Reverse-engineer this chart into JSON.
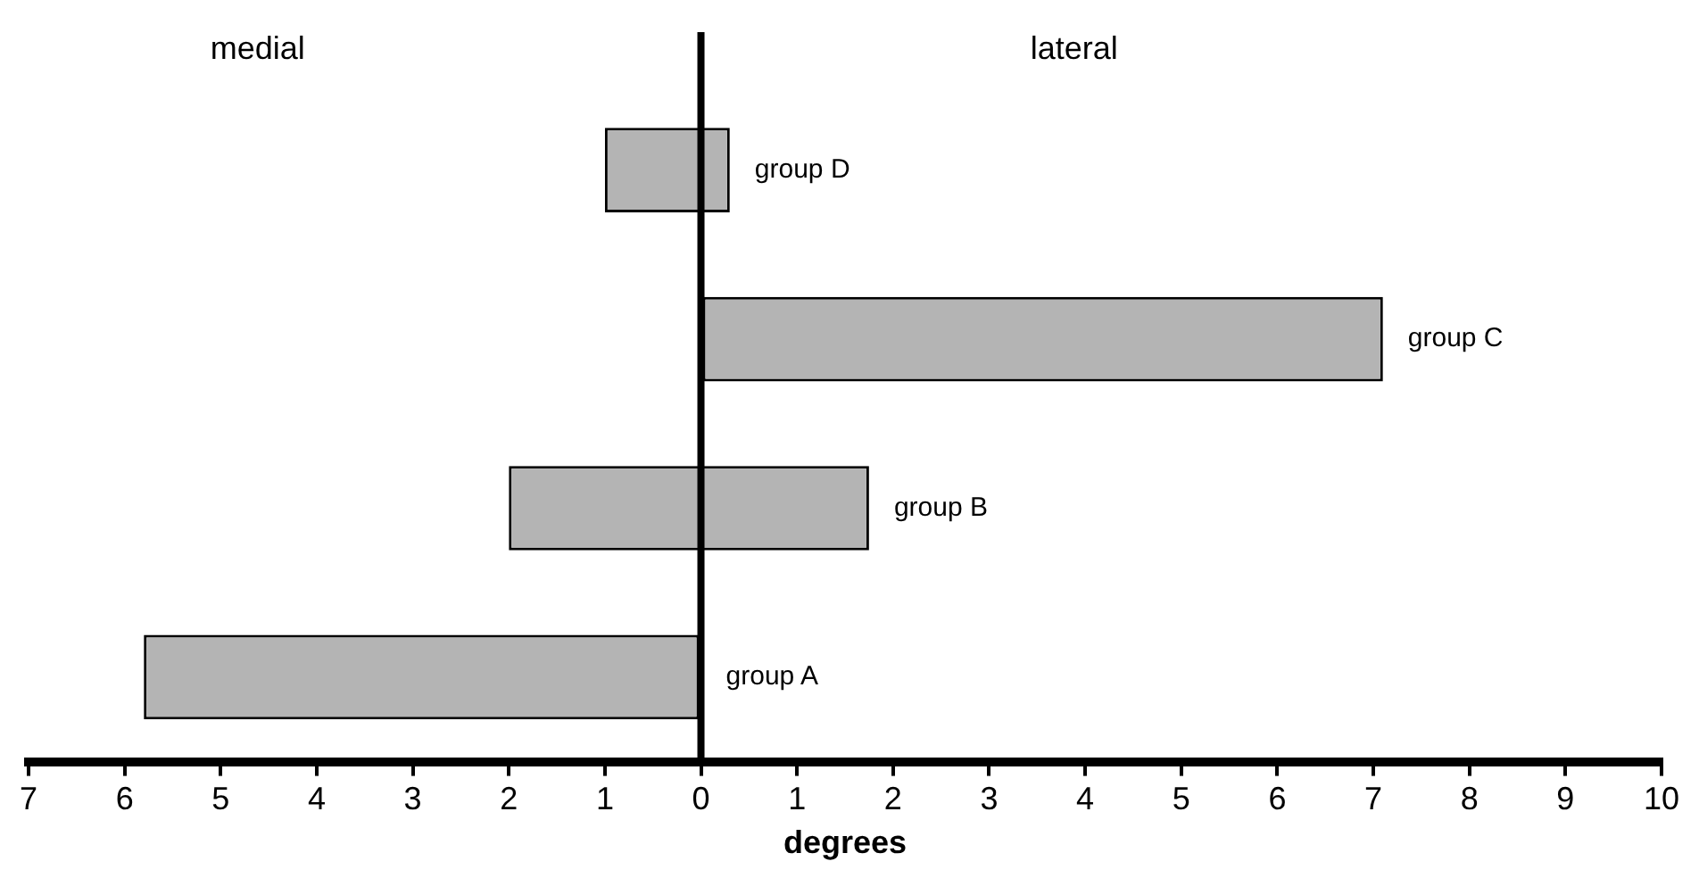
{
  "chart_data": {
    "type": "bar",
    "orientation": "horizontal",
    "xlabel": "degrees",
    "categories": [
      "group D",
      "group C",
      "group B",
      "group A"
    ],
    "base": [
      -1,
      0,
      -2,
      -5.8
    ],
    "values": [
      1.3,
      7.1,
      3.75,
      5.8
    ],
    "color": "#b4b4b4",
    "xlim": [
      -7,
      10
    ],
    "xticks": [
      {
        "value": -7,
        "label": "7"
      },
      {
        "value": -6,
        "label": "6"
      },
      {
        "value": -5,
        "label": "5"
      },
      {
        "value": -4,
        "label": "4"
      },
      {
        "value": -3,
        "label": "3"
      },
      {
        "value": -2,
        "label": "2"
      },
      {
        "value": -1,
        "label": "1"
      },
      0,
      1,
      2,
      3,
      4,
      5,
      6,
      7,
      8,
      9,
      10
    ],
    "annotations": [
      "medial",
      "lateral"
    ],
    "legend": false
  }
}
